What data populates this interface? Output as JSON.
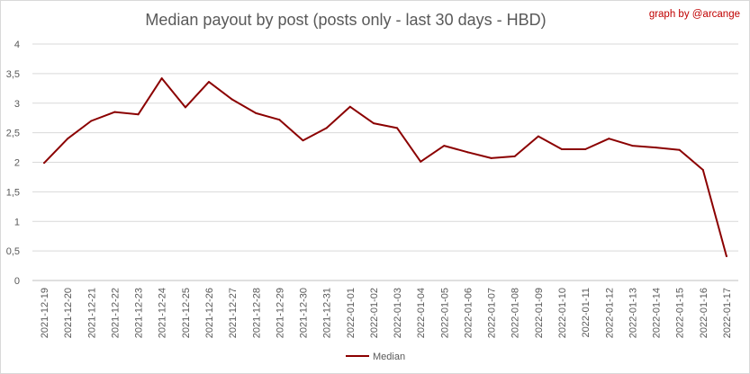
{
  "chart_data": {
    "type": "line",
    "title": "Median payout by post (posts only - last 30 days - HBD)",
    "credit": "graph by @arcange",
    "xlabel": "",
    "ylabel": "",
    "ylim": [
      0,
      4
    ],
    "yticks": [
      "0",
      "0,5",
      "1",
      "1,5",
      "2",
      "2,5",
      "3",
      "3,5",
      "4"
    ],
    "grid": true,
    "legend_position": "bottom",
    "line_color": "#8b0000",
    "categories": [
      "2021-12-19",
      "2021-12-20",
      "2021-12-21",
      "2021-12-22",
      "2021-12-23",
      "2021-12-24",
      "2021-12-25",
      "2021-12-26",
      "2021-12-27",
      "2021-12-28",
      "2021-12-29",
      "2021-12-30",
      "2021-12-31",
      "2022-01-01",
      "2022-01-02",
      "2022-01-03",
      "2022-01-04",
      "2022-01-05",
      "2022-01-06",
      "2022-01-07",
      "2022-01-08",
      "2022-01-09",
      "2022-01-10",
      "2022-01-11",
      "2022-01-12",
      "2022-01-13",
      "2022-01-14",
      "2022-01-15",
      "2022-01-16",
      "2022-01-17"
    ],
    "series": [
      {
        "name": "Median",
        "values": [
          1.99,
          2.4,
          2.7,
          2.85,
          2.81,
          3.42,
          2.93,
          3.36,
          3.06,
          2.83,
          2.72,
          2.37,
          2.58,
          2.94,
          2.66,
          2.58,
          2.01,
          2.28,
          2.17,
          2.07,
          2.1,
          2.44,
          2.22,
          2.22,
          2.4,
          2.28,
          2.25,
          2.21,
          1.87,
          0.41
        ]
      }
    ]
  }
}
